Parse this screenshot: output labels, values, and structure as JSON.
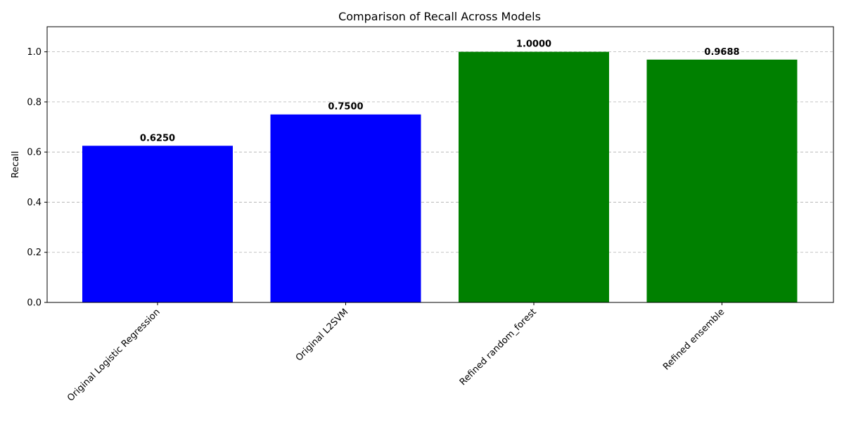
{
  "chart_data": {
    "type": "bar",
    "title": "Comparison of Recall Across Models",
    "xlabel": "",
    "ylabel": "Recall",
    "categories": [
      "Original Logistic Regression",
      "Original L2SVM",
      "Refined random_forest",
      "Refined ensemble"
    ],
    "values": [
      0.625,
      0.75,
      1.0,
      0.9688
    ],
    "value_labels": [
      "0.6250",
      "0.7500",
      "1.0000",
      "0.9688"
    ],
    "bar_colors": [
      "#0000ff",
      "#0000ff",
      "#008000",
      "#008000"
    ],
    "ylim": [
      0,
      1.1
    ],
    "yticks": [
      0.0,
      0.2,
      0.4,
      0.6,
      0.8,
      1.0
    ],
    "ytick_labels": [
      "0.0",
      "0.2",
      "0.4",
      "0.6",
      "0.8",
      "1.0"
    ],
    "grid": "y-dashed",
    "legend": "none"
  }
}
